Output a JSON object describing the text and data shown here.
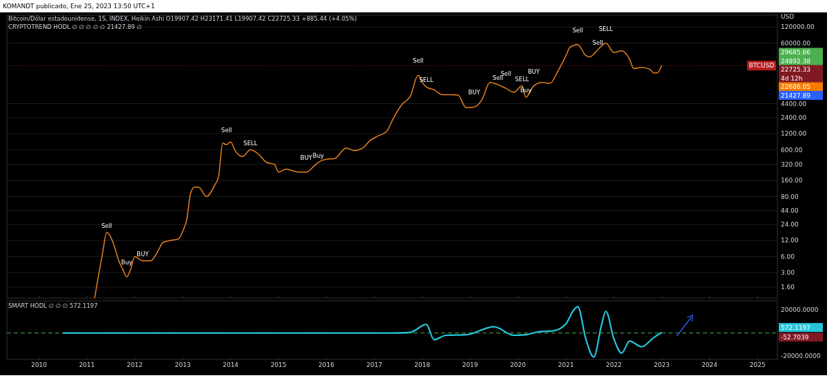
{
  "chart_data": [
    {
      "type": "line",
      "title": "KOMANDT publicado, Ene 25, 2023 13:50 UTC+1",
      "subtitle": "Bitcoin/Dólar estadounidense, 1S, INDEX, Heikin Ashi O19907.42 H23171.41 L19907.42 C22725.33 +885.44 (+4.05%)",
      "ylabel": "USD",
      "log": "y",
      "grid": "y",
      "tick_labels": "y",
      "xlim": [
        "2009-05",
        "2025-06"
      ],
      "xticks": [
        "2010",
        "2011",
        "2012",
        "2013",
        "2014",
        "2015",
        "2016",
        "2017",
        "2018",
        "2019",
        "2020",
        "2021",
        "2022",
        "2023",
        "2024",
        "2025"
      ],
      "ylim": [
        1,
        200000
      ],
      "yticks": [
        {
          "value": 120000,
          "label": "120000.00"
        },
        {
          "value": 60000,
          "label": "60000.00"
        },
        {
          "value": 4400,
          "label": "4400.00"
        },
        {
          "value": 2400,
          "label": "2400.00"
        },
        {
          "value": 1200,
          "label": "1200.00"
        },
        {
          "value": 600,
          "label": "600.00"
        },
        {
          "value": 320,
          "label": "320.00"
        },
        {
          "value": 160,
          "label": "160.00"
        },
        {
          "value": 80,
          "label": "80.00"
        },
        {
          "value": 44,
          "label": "44.00"
        },
        {
          "value": 24,
          "label": "24.00"
        },
        {
          "value": 12,
          "label": "12.00"
        },
        {
          "value": 6,
          "label": "6.00"
        },
        {
          "value": 3,
          "label": "3.00"
        },
        {
          "value": 1.6,
          "label": "1.60"
        }
      ],
      "ref_lines": [
        {
          "axis": "y",
          "value": 22725.33,
          "label": "BTCUSD",
          "color": "#b71c1c",
          "line_style": "dotted"
        }
      ],
      "series": [
        {
          "color": "#e8821e",
          "x": [
            "2011-03",
            "2011-05",
            "2011-06",
            "2011-07",
            "2011-08",
            "2011-09",
            "2011-10",
            "2011-11",
            "2011-12",
            "2012-01",
            "2012-03",
            "2012-05",
            "2012-07",
            "2012-08",
            "2012-10",
            "2012-12",
            "2013-01",
            "2013-02",
            "2013-03",
            "2013-04",
            "2013-05",
            "2013-07",
            "2013-09",
            "2013-10",
            "2013-11",
            "2013-12",
            "2014-01",
            "2014-02",
            "2014-04",
            "2014-06",
            "2014-08",
            "2014-10",
            "2014-12",
            "2015-01",
            "2015-03",
            "2015-06",
            "2015-08",
            "2015-10",
            "2015-11",
            "2016-01",
            "2016-03",
            "2016-06",
            "2016-08",
            "2016-10",
            "2016-12",
            "2017-02",
            "2017-04",
            "2017-06",
            "2017-08",
            "2017-10",
            "2017-12",
            "2018-01",
            "2018-02",
            "2018-04",
            "2018-06",
            "2018-08",
            "2018-10",
            "2018-12",
            "2019-02",
            "2019-04",
            "2019-06",
            "2019-08",
            "2019-10",
            "2019-12",
            "2020-02",
            "2020-03",
            "2020-05",
            "2020-07",
            "2020-09",
            "2020-11",
            "2021-01",
            "2021-02",
            "2021-04",
            "2021-06",
            "2021-07",
            "2021-09",
            "2021-11",
            "2022-01",
            "2022-03",
            "2022-05",
            "2022-06",
            "2022-08",
            "2022-10",
            "2022-11",
            "2022-12",
            "2023-01"
          ],
          "values": [
            1,
            7,
            17,
            14,
            9,
            5,
            3.5,
            2.5,
            3.5,
            6,
            5,
            5,
            8,
            11,
            12,
            13,
            18,
            30,
            90,
            120,
            120,
            80,
            130,
            190,
            800,
            750,
            850,
            600,
            450,
            600,
            500,
            350,
            320,
            230,
            260,
            230,
            230,
            300,
            350,
            400,
            410,
            650,
            580,
            640,
            900,
            1100,
            1300,
            2500,
            4300,
            6000,
            15000,
            11000,
            9000,
            8000,
            6500,
            6500,
            6400,
            3700,
            3800,
            5200,
            11000,
            10000,
            8500,
            7200,
            9500,
            5800,
            9500,
            11000,
            10500,
            18000,
            35000,
            50000,
            56000,
            35000,
            33000,
            45000,
            60000,
            40000,
            43000,
            30000,
            20000,
            21000,
            19500,
            16500,
            16800,
            22725.33
          ]
        }
      ],
      "annotations": [
        "CRYPTOTREND HODL ∅ ∅ ∅ ∅ ∅ 21427.89 ∅",
        "29685.66",
        "24892.38",
        "22725.33",
        "4d 12h",
        "22686.05",
        "21427.89",
        {
          "text": "Sell",
          "x": "2011-06",
          "y": 17
        },
        {
          "text": "Buy",
          "x": "2011-11",
          "y": 2.5
        },
        {
          "text": "BUY",
          "x": "2012-03",
          "y": 5
        },
        {
          "text": "Sell",
          "x": "2013-12",
          "y": 750
        },
        {
          "text": "SELL",
          "x": "2014-06",
          "y": 600
        },
        {
          "text": "BUY",
          "x": "2015-08",
          "y": 230
        },
        {
          "text": "Buy",
          "x": "2015-11",
          "y": 350
        },
        {
          "text": "Sell",
          "x": "2017-12",
          "y": 15000
        },
        {
          "text": "SELL",
          "x": "2018-02",
          "y": 9000
        },
        {
          "text": "BUY",
          "x": "2019-02",
          "y": 3800
        },
        {
          "text": "Sell",
          "x": "2019-08",
          "y": 10000
        },
        {
          "text": "Sell",
          "x": "2019-10",
          "y": 8500
        },
        {
          "text": "SELL",
          "x": "2020-02",
          "y": 9500
        },
        {
          "text": "BUY",
          "x": "2020-05",
          "y": 9500
        },
        {
          "text": "Buy",
          "x": "2020-03",
          "y": 5800
        },
        {
          "text": "Sell",
          "x": "2021-04",
          "y": 56000
        },
        {
          "text": "Sell",
          "x": "2021-09",
          "y": 45000
        },
        {
          "text": "SELL",
          "x": "2021-11",
          "y": 60000
        }
      ]
    },
    {
      "type": "line",
      "title": "SMART HODL ∅ ∅ ∅ 572.1197",
      "grid": false,
      "xlim": [
        "2009-05",
        "2025-06"
      ],
      "xticks": [
        "2010",
        "2011",
        "2012",
        "2013",
        "2014",
        "2015",
        "2016",
        "2017",
        "2018",
        "2019",
        "2020",
        "2021",
        "2022",
        "2023",
        "2024",
        "2025"
      ],
      "ylim": [
        -23000,
        28000
      ],
      "yticks": [
        {
          "value": 20000,
          "label": "20000.0000"
        },
        {
          "value": -20000,
          "label": "-20000.0000"
        }
      ],
      "ref_lines": [
        {
          "axis": "y",
          "value": 0,
          "color": "#4caf50",
          "line_style": "dashed"
        }
      ],
      "series": [
        {
          "color": "#26c6da",
          "x": [
            "2010-07",
            "2011-06",
            "2012-06",
            "2013-06",
            "2014-06",
            "2015-06",
            "2016-06",
            "2017-06",
            "2017-10",
            "2018-02",
            "2018-04",
            "2018-07",
            "2018-12",
            "2019-07",
            "2019-12",
            "2020-03",
            "2020-06",
            "2020-10",
            "2021-01",
            "2021-03",
            "2021-04",
            "2021-06",
            "2021-08",
            "2021-10",
            "2021-11",
            "2022-01",
            "2022-03",
            "2022-05",
            "2022-08",
            "2022-11",
            "2023-01"
          ],
          "values": [
            0,
            0,
            0,
            0,
            0,
            0,
            0,
            0,
            500,
            7500,
            -5800,
            -2000,
            -1500,
            5400,
            -2000,
            -1500,
            1000,
            2000,
            8000,
            20000,
            23000,
            -5000,
            -21000,
            8000,
            19000,
            -5000,
            -17500,
            -7000,
            -12000,
            -4000,
            572
          ]
        }
      ],
      "annotations": [
        "572.1197",
        "-52.7039"
      ]
    }
  ]
}
